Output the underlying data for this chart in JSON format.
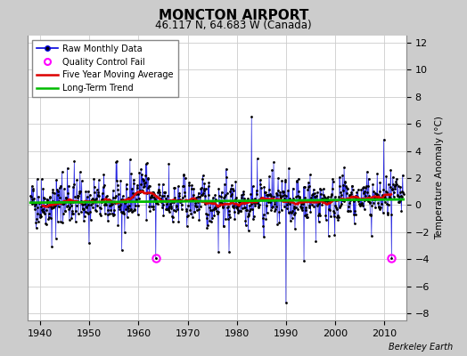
{
  "title": "MONCTON AIRPORT",
  "subtitle": "46.117 N, 64.683 W (Canada)",
  "ylabel": "Temperature Anomaly (°C)",
  "attribution": "Berkeley Earth",
  "xlim": [
    1937.5,
    2014.5
  ],
  "ylim": [
    -8.5,
    12.5
  ],
  "yticks": [
    -8,
    -6,
    -4,
    -2,
    0,
    2,
    4,
    6,
    8,
    10,
    12
  ],
  "xticks": [
    1940,
    1950,
    1960,
    1970,
    1980,
    1990,
    2000,
    2010
  ],
  "raw_color": "#0000dd",
  "dot_color": "#000000",
  "ma_color": "#dd0000",
  "trend_color": "#00bb00",
  "qc_color": "#ff00ff",
  "outer_bg": "#cccccc",
  "plot_bg": "#ffffff",
  "grid_color": "#cccccc",
  "seed": 42,
  "start_year": 1938,
  "end_year": 2013,
  "n_months": 912,
  "qc_fail_times": [
    1963.5,
    2011.5
  ],
  "qc_fail_values": [
    -3.9,
    -3.9
  ]
}
